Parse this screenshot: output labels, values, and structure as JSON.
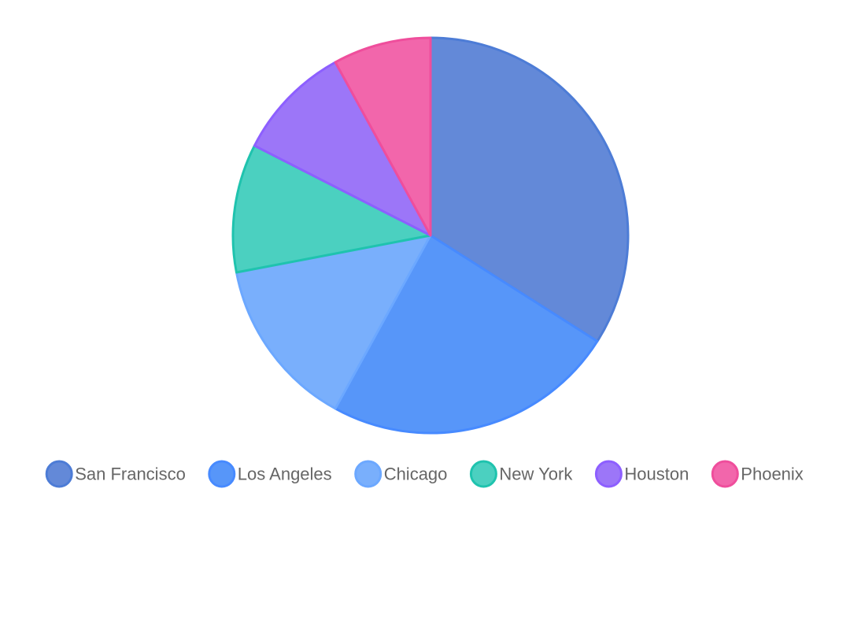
{
  "chart_data": {
    "type": "pie",
    "title": "",
    "categories": [
      "San Francisco",
      "Los Angeles",
      "Chicago",
      "New York",
      "Houston",
      "Phoenix"
    ],
    "values": [
      34,
      24,
      14,
      10.5,
      9.5,
      8
    ],
    "colors": {
      "fills": [
        "#6389d8",
        "#5796f9",
        "#79affc",
        "#4bd0c0",
        "#9c76f8",
        "#f266ab"
      ],
      "strokes": [
        "#4d7cd6",
        "#478aff",
        "#6ca8ff",
        "#1fc3ae",
        "#8d5fff",
        "#ef4e9c"
      ]
    },
    "start_angle_deg": 0,
    "direction": "clockwise",
    "legend": {
      "position": "bottom",
      "marker": "circle"
    }
  }
}
